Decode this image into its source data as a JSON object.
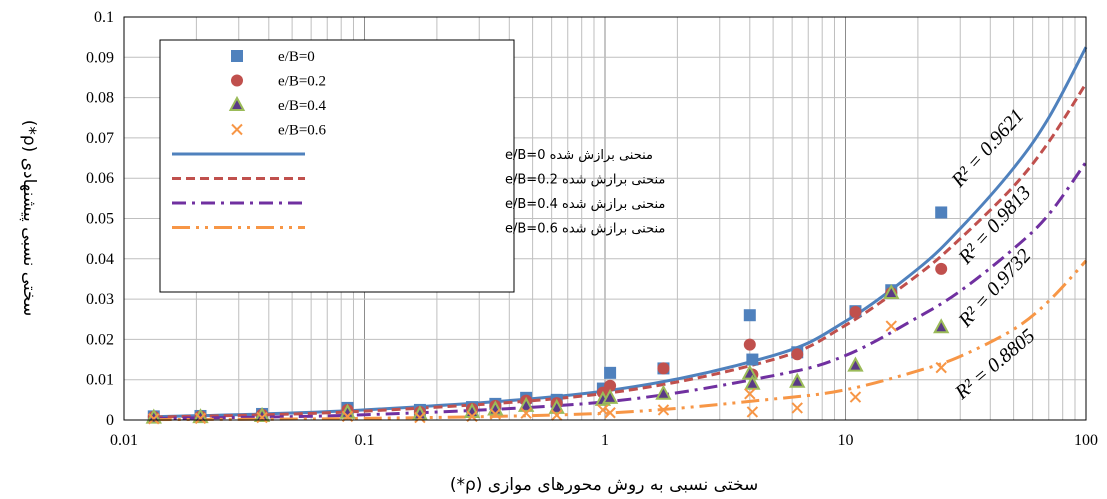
{
  "chart_data": {
    "type": "scatter",
    "xscale": "log",
    "xlim": [
      0.01,
      100
    ],
    "ylim": [
      0,
      0.1
    ],
    "grid": true,
    "xlabel": "سختی نسبی به روش محورهای موازی (ρ*)",
    "ylabel": "سختی نسبی پیشنهادی (ρ*)",
    "legend_position": "top-left",
    "x_ticks": [
      "0.01",
      "0.1",
      "1",
      "10",
      "100"
    ],
    "y_ticks": [
      "0",
      "0.01",
      "0.02",
      "0.03",
      "0.04",
      "0.05",
      "0.06",
      "0.07",
      "0.08",
      "0.09",
      "0.1"
    ],
    "series": [
      {
        "name": "e/B=0",
        "marker": "square",
        "color": "#4F81BD",
        "x": [
          0.0133,
          0.0208,
          0.0375,
          0.085,
          0.17,
          0.28,
          0.35,
          0.47,
          0.63,
          0.98,
          1.05,
          1.75,
          4.0,
          4.1,
          6.3,
          11.0,
          15.5,
          25.0
        ],
        "y": [
          0.0009,
          0.001,
          0.0015,
          0.003,
          0.0025,
          0.0032,
          0.004,
          0.0055,
          0.005,
          0.0078,
          0.0117,
          0.0128,
          0.026,
          0.015,
          0.0168,
          0.027,
          0.0322,
          0.0515
        ]
      },
      {
        "name": "e/B=0.2",
        "marker": "circle",
        "color": "#C0504D",
        "x": [
          0.0133,
          0.0208,
          0.0375,
          0.085,
          0.17,
          0.28,
          0.35,
          0.47,
          0.63,
          0.98,
          1.05,
          1.75,
          4.0,
          4.1,
          6.3,
          11.0,
          15.5,
          25.0
        ],
        "y": [
          0.0008,
          0.0009,
          0.0013,
          0.0025,
          0.002,
          0.0028,
          0.0035,
          0.0048,
          0.0042,
          0.0068,
          0.0085,
          0.0128,
          0.0187,
          0.0113,
          0.0163,
          0.0268,
          0.0315,
          0.0375
        ]
      },
      {
        "name": "e/B=0.4",
        "marker": "triangle",
        "color": "#9BBB59",
        "x": [
          0.0133,
          0.0208,
          0.0375,
          0.085,
          0.17,
          0.28,
          0.35,
          0.47,
          0.63,
          0.98,
          1.05,
          1.75,
          4.0,
          4.1,
          6.3,
          11.0,
          15.5,
          25.0
        ],
        "y": [
          0.0006,
          0.0007,
          0.001,
          0.0018,
          0.0014,
          0.002,
          0.0026,
          0.0035,
          0.003,
          0.005,
          0.0055,
          0.0065,
          0.0115,
          0.009,
          0.0095,
          0.0135,
          0.0315,
          0.023
        ]
      },
      {
        "name": "e/B=0.6",
        "marker": "x",
        "color": "#F79646",
        "x": [
          0.0133,
          0.0208,
          0.0375,
          0.085,
          0.17,
          0.28,
          0.35,
          0.47,
          0.63,
          0.98,
          1.05,
          1.75,
          4.0,
          4.1,
          6.3,
          11.0,
          15.5,
          25.0
        ],
        "y": [
          0.0003,
          0.0004,
          0.0006,
          0.0009,
          0.0006,
          0.0009,
          0.0015,
          0.0017,
          0.0012,
          0.0025,
          0.0018,
          0.0025,
          0.0065,
          0.002,
          0.003,
          0.0057,
          0.0233,
          0.013
        ]
      }
    ],
    "fits": [
      {
        "name": "منحنی برازش شده e/B=0",
        "color": "#4F81BD",
        "style": "solid",
        "r2_label": "R² = 0.9621",
        "r2": 0.9621,
        "x": [
          0.0133,
          0.1,
          1,
          5,
          10,
          20,
          30,
          50,
          70,
          100
        ],
        "y": [
          0.0008,
          0.0025,
          0.0072,
          0.016,
          0.0245,
          0.0375,
          0.0475,
          0.0625,
          0.075,
          0.0925
        ]
      },
      {
        "name": "منحنی برازش شده e/B=0.2",
        "color": "#C0504D",
        "style": "dashed",
        "r2_label": "R² = 0.9813",
        "r2": 0.9813,
        "x": [
          0.0133,
          0.1,
          1,
          5,
          10,
          20,
          30,
          50,
          70,
          100
        ],
        "y": [
          0.0007,
          0.0022,
          0.0066,
          0.015,
          0.0235,
          0.036,
          0.045,
          0.058,
          0.069,
          0.0835
        ]
      },
      {
        "name": "منحنی برازش شده e/B=0.4",
        "color": "#7030A0",
        "style": "dashdot",
        "r2_label": "R² = 0.9732",
        "r2": 0.9732,
        "x": [
          0.0133,
          0.1,
          1,
          5,
          10,
          20,
          30,
          50,
          70,
          100
        ],
        "y": [
          0.0004,
          0.0013,
          0.0045,
          0.011,
          0.016,
          0.0255,
          0.032,
          0.0425,
          0.051,
          0.064
        ]
      },
      {
        "name": "منحنی برازش شده e/B=0.6",
        "color": "#F79646",
        "style": "longdashdot",
        "r2_label": "R² = 0.8805",
        "r2": 0.8805,
        "x": [
          0.0133,
          0.1,
          1,
          5,
          10,
          20,
          30,
          50,
          70,
          100
        ],
        "y": [
          0.0001,
          0.0004,
          0.0017,
          0.0052,
          0.0075,
          0.0122,
          0.0158,
          0.0225,
          0.0295,
          0.0395
        ]
      }
    ]
  }
}
